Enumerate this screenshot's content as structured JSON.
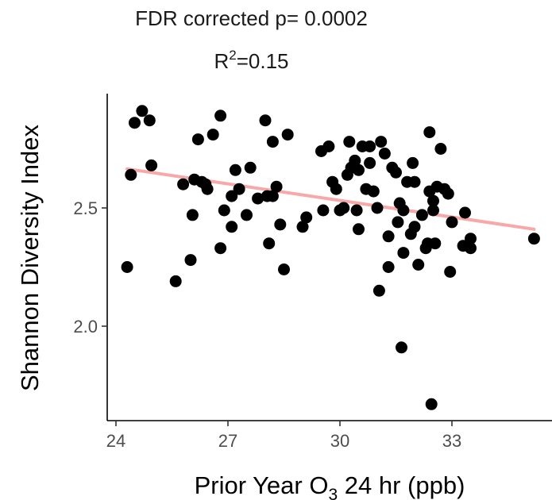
{
  "chart_data": {
    "type": "scatter",
    "title_line1": "FDR corrected p= 0.0002",
    "title_line2_prefix": "R",
    "title_line2_sup": "2",
    "title_line2_suffix": "=0.15",
    "xlabel_prefix": "Prior Year O",
    "xlabel_sub": "3",
    "xlabel_suffix": " 24 hr (ppb)",
    "ylabel": "Shannon Diversity Index",
    "xlim": [
      23.8,
      35.4
    ],
    "ylim": [
      1.67,
      2.94
    ],
    "x_ticks": [
      24,
      27,
      30,
      33
    ],
    "y_ticks": [
      2.0,
      2.5
    ],
    "x_tick_labels": [
      "24",
      "27",
      "30",
      "33"
    ],
    "y_tick_labels": [
      "2.0",
      "2.5"
    ],
    "grid": false,
    "point_color": "#000000",
    "line_color": "#f8a8a8",
    "regression": {
      "x": [
        24.3,
        35.2
      ],
      "y": [
        2.665,
        2.41
      ]
    },
    "points": [
      [
        24.3,
        2.25
      ],
      [
        24.4,
        2.64
      ],
      [
        24.5,
        2.86
      ],
      [
        24.7,
        2.91
      ],
      [
        24.9,
        2.87
      ],
      [
        24.95,
        2.68
      ],
      [
        25.6,
        2.19
      ],
      [
        25.8,
        2.6
      ],
      [
        26.0,
        2.28
      ],
      [
        26.05,
        2.47
      ],
      [
        26.1,
        2.62
      ],
      [
        26.2,
        2.79
      ],
      [
        26.3,
        2.61
      ],
      [
        26.4,
        2.6
      ],
      [
        26.45,
        2.58
      ],
      [
        26.6,
        2.81
      ],
      [
        26.8,
        2.89
      ],
      [
        26.8,
        2.33
      ],
      [
        26.9,
        2.49
      ],
      [
        27.1,
        2.55
      ],
      [
        27.1,
        2.42
      ],
      [
        27.2,
        2.66
      ],
      [
        27.3,
        2.58
      ],
      [
        27.5,
        2.47
      ],
      [
        27.6,
        2.67
      ],
      [
        27.8,
        2.54
      ],
      [
        28.0,
        2.87
      ],
      [
        28.05,
        2.55
      ],
      [
        28.1,
        2.35
      ],
      [
        28.2,
        2.55
      ],
      [
        28.2,
        2.78
      ],
      [
        28.3,
        2.59
      ],
      [
        28.4,
        2.43
      ],
      [
        28.5,
        2.24
      ],
      [
        28.6,
        2.81
      ],
      [
        29.0,
        2.42
      ],
      [
        29.1,
        2.46
      ],
      [
        29.5,
        2.74
      ],
      [
        29.55,
        2.49
      ],
      [
        29.7,
        2.76
      ],
      [
        29.8,
        2.61
      ],
      [
        29.9,
        2.58
      ],
      [
        30.0,
        2.49
      ],
      [
        30.1,
        2.5
      ],
      [
        30.2,
        2.64
      ],
      [
        30.25,
        2.78
      ],
      [
        30.3,
        2.67
      ],
      [
        30.4,
        2.7
      ],
      [
        30.45,
        2.49
      ],
      [
        30.5,
        2.66
      ],
      [
        30.5,
        2.41
      ],
      [
        30.6,
        2.76
      ],
      [
        30.7,
        2.58
      ],
      [
        30.8,
        2.76
      ],
      [
        30.8,
        2.69
      ],
      [
        30.9,
        2.57
      ],
      [
        31.0,
        2.5
      ],
      [
        31.05,
        2.15
      ],
      [
        31.1,
        2.78
      ],
      [
        31.2,
        2.73
      ],
      [
        31.3,
        2.25
      ],
      [
        31.3,
        2.38
      ],
      [
        31.4,
        2.67
      ],
      [
        31.5,
        2.65
      ],
      [
        31.55,
        2.44
      ],
      [
        31.6,
        2.52
      ],
      [
        31.65,
        1.91
      ],
      [
        31.7,
        2.31
      ],
      [
        31.7,
        2.49
      ],
      [
        31.8,
        2.61
      ],
      [
        31.9,
        2.39
      ],
      [
        31.95,
        2.69
      ],
      [
        32.0,
        2.42
      ],
      [
        32.0,
        2.61
      ],
      [
        32.1,
        2.26
      ],
      [
        32.2,
        2.47
      ],
      [
        32.3,
        2.33
      ],
      [
        32.35,
        2.35
      ],
      [
        32.4,
        2.57
      ],
      [
        32.4,
        2.82
      ],
      [
        32.45,
        1.67
      ],
      [
        32.5,
        2.49
      ],
      [
        32.5,
        2.53
      ],
      [
        32.55,
        2.35
      ],
      [
        32.6,
        2.59
      ],
      [
        32.7,
        2.75
      ],
      [
        32.8,
        2.58
      ],
      [
        32.9,
        2.56
      ],
      [
        32.95,
        2.23
      ],
      [
        33.0,
        2.44
      ],
      [
        33.3,
        2.34
      ],
      [
        33.35,
        2.48
      ],
      [
        33.5,
        2.33
      ],
      [
        33.5,
        2.37
      ],
      [
        35.2,
        2.37
      ]
    ]
  }
}
